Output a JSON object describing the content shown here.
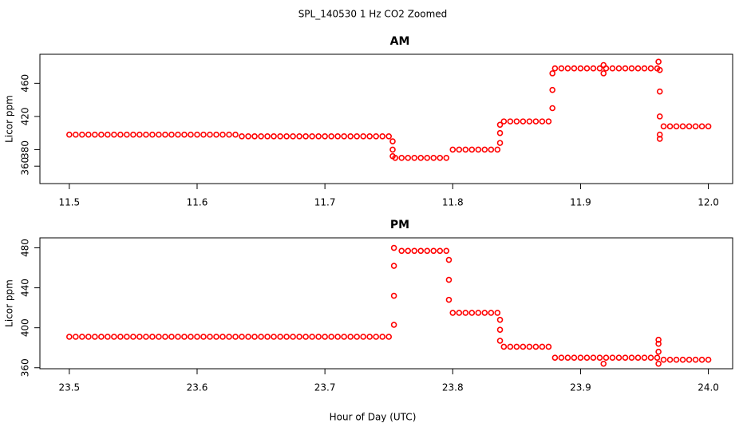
{
  "title": "SPL_140530  1 Hz CO2 Zoomed",
  "x_label": "Hour of Day (UTC)",
  "chart_data": [
    {
      "type": "scatter",
      "title": "AM",
      "y_label": "Licor ppm",
      "color": "#ff0000",
      "xlim": [
        11.477,
        12.019
      ],
      "xticks": [
        11.5,
        11.6,
        11.7,
        11.8,
        11.9,
        {
          "value": 12.0,
          "label": "12.0"
        }
      ],
      "ylim": [
        339,
        495
      ],
      "yticks": [
        360,
        380,
        420,
        460
      ],
      "x": [
        11.5,
        11.505,
        11.51,
        11.515,
        11.52,
        11.525,
        11.53,
        11.535,
        11.54,
        11.545,
        11.55,
        11.555,
        11.56,
        11.565,
        11.57,
        11.575,
        11.58,
        11.585,
        11.59,
        11.595,
        11.6,
        11.605,
        11.61,
        11.615,
        11.62,
        11.625,
        11.63,
        11.635,
        11.64,
        11.645,
        11.65,
        11.655,
        11.66,
        11.665,
        11.67,
        11.675,
        11.68,
        11.685,
        11.69,
        11.695,
        11.7,
        11.705,
        11.71,
        11.715,
        11.72,
        11.725,
        11.73,
        11.735,
        11.74,
        11.745,
        11.75,
        11.753,
        11.753,
        11.753,
        11.755,
        11.76,
        11.765,
        11.77,
        11.775,
        11.78,
        11.785,
        11.79,
        11.795,
        11.8,
        11.805,
        11.81,
        11.815,
        11.82,
        11.825,
        11.83,
        11.835,
        11.837,
        11.837,
        11.837,
        11.84,
        11.845,
        11.85,
        11.855,
        11.86,
        11.865,
        11.87,
        11.875,
        11.878,
        11.878,
        11.878,
        11.88,
        11.885,
        11.89,
        11.895,
        11.9,
        11.905,
        11.91,
        11.915,
        11.92,
        11.925,
        11.93,
        11.935,
        11.94,
        11.945,
        11.95,
        11.955,
        11.96,
        11.918,
        11.918,
        11.961,
        11.962,
        11.962,
        11.962,
        11.962,
        11.962,
        11.965,
        11.97,
        11.975,
        11.98,
        11.985,
        11.99,
        11.995,
        12.0
      ],
      "y": [
        398,
        398,
        398,
        398,
        398,
        398,
        398,
        398,
        398,
        398,
        398,
        398,
        398,
        398,
        398,
        398,
        398,
        398,
        398,
        398,
        398,
        398,
        398,
        398,
        398,
        398,
        398,
        396,
        396,
        396,
        396,
        396,
        396,
        396,
        396,
        396,
        396,
        396,
        396,
        396,
        396,
        396,
        396,
        396,
        396,
        396,
        396,
        396,
        396,
        396,
        396,
        390,
        380,
        372,
        370,
        370,
        370,
        370,
        370,
        370,
        370,
        370,
        370,
        380,
        380,
        380,
        380,
        380,
        380,
        380,
        380,
        388,
        400,
        410,
        414,
        414,
        414,
        414,
        414,
        414,
        414,
        414,
        430,
        452,
        472,
        478,
        478,
        478,
        478,
        478,
        478,
        478,
        478,
        478,
        478,
        478,
        478,
        478,
        478,
        478,
        478,
        478,
        482,
        472,
        486,
        476,
        450,
        420,
        398,
        393,
        408,
        408,
        408,
        408,
        408,
        408,
        408,
        408
      ]
    },
    {
      "type": "scatter",
      "title": "PM",
      "y_label": "Licor ppm",
      "color": "#ff0000",
      "xlim": [
        23.477,
        24.019
      ],
      "xticks": [
        23.5,
        23.6,
        23.7,
        23.8,
        23.9,
        {
          "value": 24.0,
          "label": "24.0"
        }
      ],
      "ylim": [
        359,
        490
      ],
      "yticks": [
        360,
        400,
        440,
        480
      ],
      "x": [
        23.5,
        23.505,
        23.51,
        23.515,
        23.52,
        23.525,
        23.53,
        23.535,
        23.54,
        23.545,
        23.55,
        23.555,
        23.56,
        23.565,
        23.57,
        23.575,
        23.58,
        23.585,
        23.59,
        23.595,
        23.6,
        23.605,
        23.61,
        23.615,
        23.62,
        23.625,
        23.63,
        23.635,
        23.64,
        23.645,
        23.65,
        23.655,
        23.66,
        23.665,
        23.67,
        23.675,
        23.68,
        23.685,
        23.69,
        23.695,
        23.7,
        23.705,
        23.71,
        23.715,
        23.72,
        23.725,
        23.73,
        23.735,
        23.74,
        23.745,
        23.75,
        23.754,
        23.754,
        23.754,
        23.754,
        23.76,
        23.765,
        23.77,
        23.775,
        23.78,
        23.785,
        23.79,
        23.795,
        23.797,
        23.797,
        23.797,
        23.8,
        23.805,
        23.81,
        23.815,
        23.82,
        23.825,
        23.83,
        23.835,
        23.837,
        23.837,
        23.837,
        23.84,
        23.845,
        23.85,
        23.855,
        23.86,
        23.865,
        23.87,
        23.875,
        23.88,
        23.885,
        23.89,
        23.895,
        23.9,
        23.905,
        23.91,
        23.915,
        23.92,
        23.925,
        23.93,
        23.935,
        23.94,
        23.945,
        23.95,
        23.955,
        23.96,
        23.918,
        23.961,
        23.961,
        23.961,
        23.961,
        23.965,
        23.97,
        23.975,
        23.98,
        23.985,
        23.99,
        23.995,
        24.0
      ],
      "y": [
        391,
        391,
        391,
        391,
        391,
        391,
        391,
        391,
        391,
        391,
        391,
        391,
        391,
        391,
        391,
        391,
        391,
        391,
        391,
        391,
        391,
        391,
        391,
        391,
        391,
        391,
        391,
        391,
        391,
        391,
        391,
        391,
        391,
        391,
        391,
        391,
        391,
        391,
        391,
        391,
        391,
        391,
        391,
        391,
        391,
        391,
        391,
        391,
        391,
        391,
        391,
        403,
        432,
        462,
        480,
        477,
        477,
        477,
        477,
        477,
        477,
        477,
        477,
        468,
        448,
        428,
        415,
        415,
        415,
        415,
        415,
        415,
        415,
        415,
        408,
        398,
        387,
        381,
        381,
        381,
        381,
        381,
        381,
        381,
        381,
        370,
        370,
        370,
        370,
        370,
        370,
        370,
        370,
        370,
        370,
        370,
        370,
        370,
        370,
        370,
        370,
        370,
        364,
        388,
        384,
        376,
        364,
        368,
        368,
        368,
        368,
        368,
        368,
        368,
        368
      ]
    }
  ]
}
